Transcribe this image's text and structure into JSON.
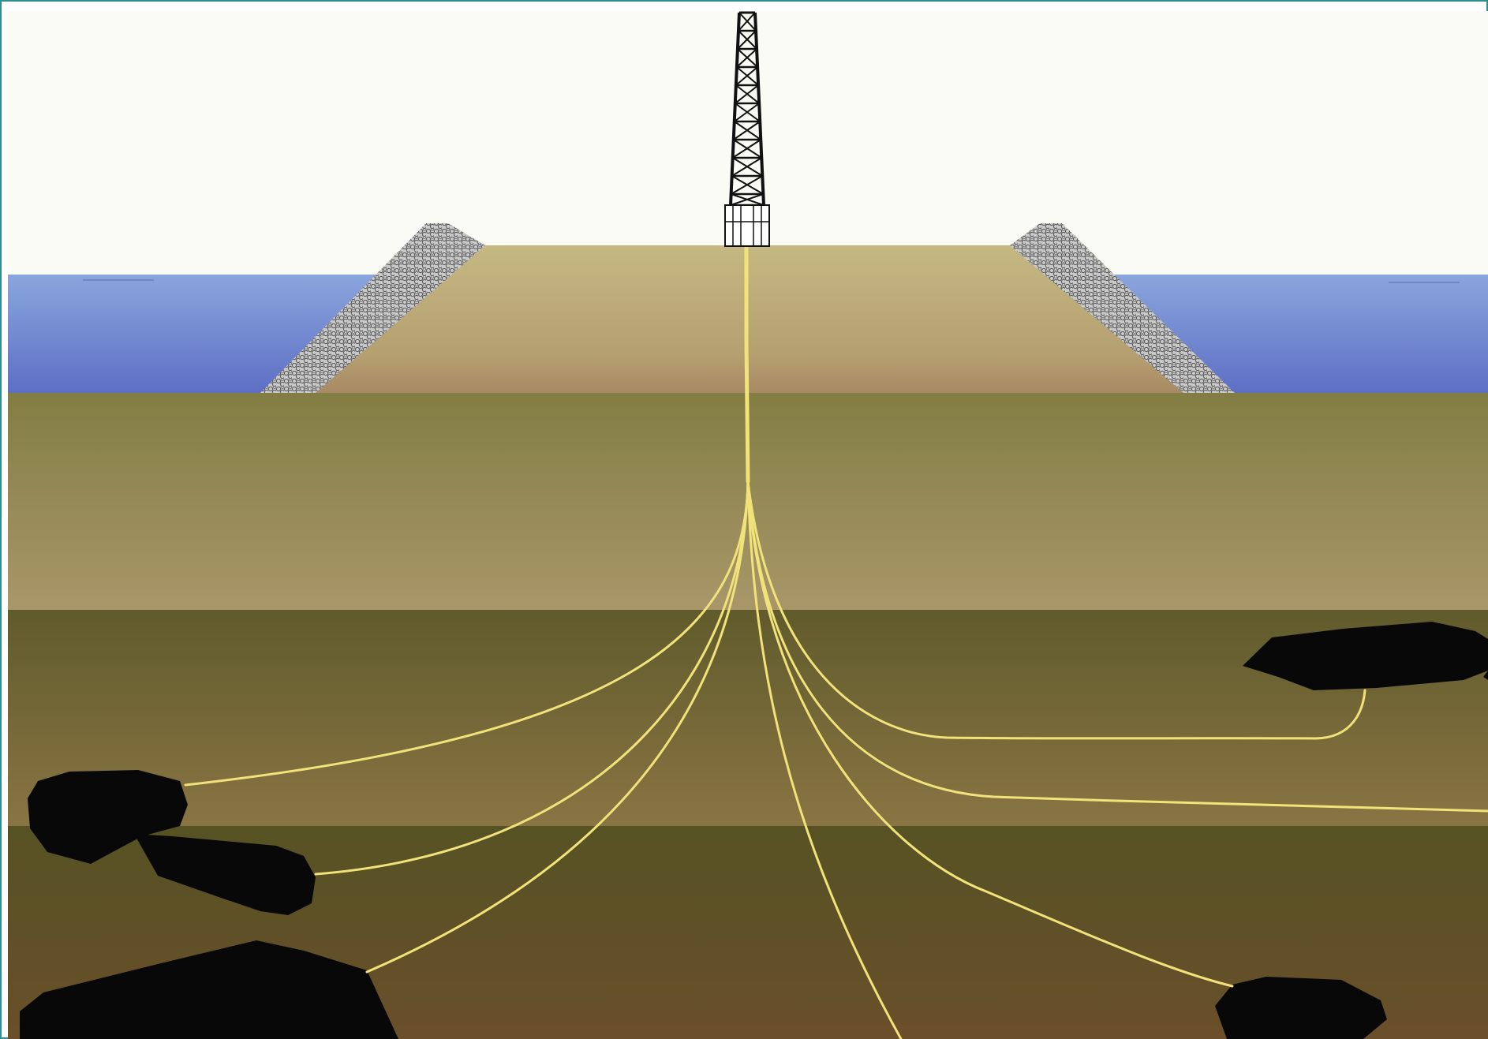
{
  "diagram": {
    "kind": "extended-reach drilling from artificial island",
    "labels": [],
    "colors": {
      "frame_border": "#2f8d94",
      "sky": "#fbfbf5",
      "water_top": "#8aa6dd",
      "water_bottom": "#5d6ec4",
      "island_top": "#c5b882",
      "island_bottom": "#a88a64",
      "layer1_top": "#827d43",
      "layer1_bottom": "#a99769",
      "layer2_top": "#605b2c",
      "layer2_bottom": "#8a7443",
      "layer3_top": "#565224",
      "layer3_bottom": "#6a4f2a",
      "wellbore": "#f2e27a",
      "reservoir": "#080808",
      "derrick": "#111111",
      "rock_armor": "#b8b8b8"
    },
    "components": {
      "rig": "drilling-derrick",
      "island": "artificial-gravel-island",
      "sea": "sea-water",
      "strata_count": 3,
      "wellbore_count": 8,
      "reservoir_count": 6
    }
  }
}
